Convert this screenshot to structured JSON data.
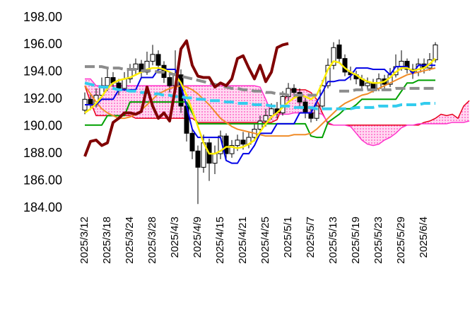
{
  "chart_data": {
    "type": "candlestick",
    "categories": [
      "2025/3/12",
      null,
      null,
      null,
      "2025/3/18",
      null,
      null,
      null,
      "2025/3/24",
      null,
      null,
      null,
      "2025/3/28",
      null,
      null,
      null,
      "2025/4/3",
      null,
      null,
      null,
      "2025/4/9",
      null,
      null,
      null,
      "2025/4/15",
      null,
      null,
      null,
      "2025/4/21",
      null,
      null,
      null,
      "2025/4/25",
      null,
      null,
      null,
      "2025/5/1",
      null,
      null,
      null,
      "2025/5/7",
      null,
      null,
      null,
      "2025/5/13",
      null,
      null,
      null,
      "2025/5/19",
      null,
      null,
      null,
      "2025/5/23",
      null,
      null,
      null,
      "2025/5/29",
      null,
      null,
      null,
      "2025/6/4",
      null,
      null,
      null,
      null,
      null,
      null,
      null,
      null
    ],
    "open": [
      191.2,
      192.0,
      191.6,
      192.3,
      193.0,
      193.6,
      193.2,
      192.8,
      193.5,
      194.2,
      194.6,
      194.0,
      194.8,
      195.3,
      194.5,
      193.6,
      193.0,
      193.8,
      191.5,
      189.5,
      188.2,
      187.0,
      188.8,
      187.3,
      188.0,
      189.3,
      188.0,
      188.6,
      189.0,
      188.7,
      189.2,
      189.8,
      190.4,
      190.8,
      191.3,
      191.0,
      192.2,
      192.8,
      192.5,
      191.8,
      191.0,
      190.6,
      191.5,
      193.0,
      194.5,
      196.0,
      195.0,
      194.0,
      193.8,
      193.5,
      193.0,
      193.2,
      192.8,
      193.5,
      193.1,
      193.8,
      194.4,
      194.8,
      194.2,
      194.0,
      194.6,
      194.3,
      194.9,
      null,
      null,
      null,
      null,
      null,
      null
    ],
    "high": [
      192.5,
      192.4,
      192.8,
      193.6,
      194.2,
      194.0,
      193.5,
      194.0,
      194.6,
      195.0,
      194.9,
      195.5,
      196.0,
      195.6,
      194.8,
      193.9,
      195.6,
      194.2,
      191.8,
      189.9,
      188.6,
      189.4,
      189.1,
      188.6,
      189.7,
      189.5,
      189.0,
      189.4,
      189.6,
      189.6,
      190.2,
      190.8,
      191.3,
      191.7,
      191.8,
      192.6,
      193.2,
      193.1,
      192.8,
      192.1,
      191.3,
      191.9,
      193.4,
      195.0,
      196.2,
      196.4,
      195.3,
      194.4,
      194.1,
      193.8,
      193.6,
      193.5,
      193.9,
      193.8,
      194.3,
      195.3,
      195.6,
      195.0,
      194.6,
      195.0,
      195.0,
      195.4,
      196.2,
      null,
      null,
      null,
      null,
      null,
      null
    ],
    "low": [
      190.9,
      191.2,
      191.4,
      192.1,
      192.6,
      192.8,
      192.3,
      192.6,
      193.2,
      193.8,
      193.6,
      193.8,
      194.5,
      194.0,
      193.2,
      192.5,
      192.8,
      191.0,
      188.9,
      187.6,
      184.3,
      186.6,
      186.0,
      186.5,
      187.6,
      187.6,
      187.7,
      188.2,
      188.3,
      188.4,
      188.9,
      189.5,
      190.0,
      190.5,
      190.6,
      190.8,
      191.9,
      192.1,
      191.4,
      190.6,
      190.3,
      190.4,
      191.3,
      192.8,
      194.2,
      194.7,
      193.7,
      193.4,
      193.1,
      192.7,
      192.7,
      192.5,
      192.6,
      192.8,
      192.9,
      193.6,
      194.1,
      193.9,
      193.5,
      193.7,
      193.9,
      194.1,
      194.7,
      null,
      null,
      null,
      null,
      null,
      null
    ],
    "close": [
      192.0,
      191.6,
      192.3,
      193.0,
      193.6,
      193.2,
      192.8,
      193.5,
      194.2,
      194.6,
      194.0,
      194.8,
      195.3,
      194.5,
      193.6,
      193.0,
      193.8,
      191.5,
      189.5,
      188.2,
      187.0,
      188.8,
      187.3,
      188.0,
      189.3,
      188.0,
      188.6,
      189.0,
      188.7,
      189.2,
      189.8,
      190.4,
      190.8,
      191.3,
      191.0,
      192.2,
      192.8,
      192.5,
      191.8,
      191.0,
      190.6,
      191.5,
      193.0,
      194.5,
      195.8,
      195.0,
      194.0,
      193.8,
      193.5,
      193.0,
      193.2,
      192.8,
      193.5,
      193.1,
      193.8,
      194.4,
      194.8,
      194.2,
      194.0,
      194.6,
      194.3,
      194.9,
      196.0,
      null,
      null,
      null,
      null,
      null,
      null
    ],
    "up_color": "#ffffff",
    "down_color": "#000000",
    "cloud": {
      "color": "#ff69c8",
      "span_a_color": "#e8001c",
      "span_b_color": "#ff33cc",
      "span_a": [
        193.0,
        191.8,
        190.8,
        190.8,
        190.8,
        190.8,
        190.8,
        190.8,
        190.8,
        190.6,
        190.6,
        190.6,
        190.6,
        190.6,
        190.6,
        190.6,
        190.6,
        190.6,
        190.6,
        190.6,
        190.3,
        190.3,
        190.3,
        190.3,
        190.3,
        190.3,
        190.3,
        190.3,
        190.3,
        190.3,
        190.3,
        190.3,
        190.3,
        190.3,
        190.5,
        191.5,
        192.7,
        192.7,
        192.7,
        192.7,
        192.5,
        192.0,
        191.0,
        190.2,
        190.1,
        190.1,
        190.1,
        190.1,
        190.1,
        190.1,
        190.1,
        190.1,
        190.1,
        190.1,
        190.1,
        190.1,
        190.1,
        190.1,
        190.1,
        190.1,
        190.3,
        190.4,
        190.6,
        190.9,
        190.8,
        190.9,
        190.6,
        191.5,
        191.9
      ],
      "span_b": [
        193.5,
        193.5,
        193.0,
        193.0,
        193.0,
        193.0,
        193.0,
        193.0,
        193.0,
        193.0,
        193.0,
        193.0,
        193.0,
        193.0,
        193.0,
        193.0,
        193.0,
        193.0,
        193.0,
        193.0,
        193.0,
        193.0,
        193.0,
        193.0,
        193.0,
        193.0,
        193.0,
        193.0,
        193.0,
        193.0,
        193.0,
        192.9,
        192.0,
        191.0,
        190.9,
        190.9,
        190.9,
        191.0,
        191.0,
        191.0,
        191.0,
        191.0,
        190.9,
        190.3,
        190.1,
        190.1,
        190.1,
        190.0,
        189.5,
        189.0,
        188.7,
        188.6,
        188.7,
        189.0,
        189.2,
        189.5,
        189.9,
        190.1,
        190.1,
        190.2,
        190.2,
        190.2,
        190.2,
        190.2,
        190.2,
        190.3,
        190.3,
        190.3,
        190.4
      ]
    },
    "lines": [
      {
        "color": "#00a000",
        "width": 2,
        "dashed": false,
        "values": [
          190.1,
          190.1,
          190.1,
          190.1,
          190.8,
          190.8,
          190.8,
          190.8,
          191.8,
          191.8,
          191.8,
          191.8,
          191.8,
          191.8,
          191.8,
          191.8,
          191.8,
          191.8,
          191.8,
          191.0,
          190.2,
          190.2,
          190.2,
          190.2,
          190.2,
          190.2,
          190.2,
          190.2,
          190.2,
          190.2,
          190.2,
          190.2,
          190.2,
          190.2,
          190.2,
          190.2,
          190.2,
          190.2,
          190.2,
          190.2,
          189.3,
          189.2,
          189.2,
          190.3,
          190.6,
          190.9,
          191.3,
          191.3,
          191.6,
          192.0,
          192.0,
          192.0,
          192.0,
          192.0,
          192.0,
          192.0,
          192.6,
          193.2,
          193.2,
          193.4,
          193.4,
          193.4,
          193.4,
          null,
          null,
          null,
          null,
          null,
          null
        ]
      },
      {
        "color": "#f08c28",
        "width": 2,
        "dashed": false,
        "values": [
          193.0,
          192.4,
          191.8,
          191.3,
          191.0,
          190.8,
          190.6,
          190.6,
          190.7,
          190.9,
          191.2,
          191.6,
          192.0,
          192.4,
          192.6,
          192.8,
          192.9,
          193.0,
          192.9,
          192.7,
          192.4,
          192.0,
          191.6,
          191.1,
          190.6,
          190.3,
          190.0,
          189.8,
          189.7,
          189.6,
          189.5,
          189.4,
          189.3,
          189.3,
          189.3,
          189.3,
          189.3,
          189.4,
          189.4,
          189.4,
          189.5,
          189.8,
          190.2,
          190.6,
          191.0,
          191.4,
          191.7,
          191.9,
          192.1,
          192.3,
          192.4,
          192.6,
          192.8,
          193.0,
          193.2,
          193.4,
          193.6,
          193.8,
          193.9,
          194.0,
          194.1,
          194.2,
          194.3,
          null,
          null,
          null,
          null,
          null,
          null
        ]
      },
      {
        "color": "#0000e6",
        "width": 2,
        "dashed": false,
        "values": [
          191.6,
          191.6,
          191.6,
          192.0,
          192.0,
          192.0,
          192.7,
          192.7,
          192.7,
          192.7,
          193.6,
          193.6,
          193.6,
          194.2,
          194.2,
          194.2,
          194.2,
          193.0,
          191.5,
          189.8,
          189.2,
          189.2,
          189.2,
          189.2,
          189.2,
          187.5,
          187.3,
          187.3,
          188.0,
          188.0,
          188.6,
          189.5,
          189.5,
          189.5,
          190.2,
          190.2,
          190.2,
          190.2,
          191.0,
          191.0,
          191.0,
          191.8,
          192.5,
          193.3,
          193.3,
          193.4,
          193.4,
          193.7,
          194.3,
          194.3,
          194.3,
          194.2,
          194.2,
          194.2,
          193.8,
          194.4,
          194.4,
          194.4,
          193.9,
          194.5,
          194.5,
          194.5,
          194.5,
          null,
          null,
          null,
          null,
          null,
          null
        ]
      },
      {
        "color": "#ffee00",
        "width": 2.5,
        "dashed": false,
        "values": [
          191.0,
          191.3,
          191.7,
          192.2,
          192.8,
          193.2,
          193.4,
          193.5,
          193.6,
          193.8,
          194.0,
          194.2,
          194.3,
          194.3,
          194.2,
          194.0,
          193.8,
          193.2,
          192.3,
          191.2,
          190.0,
          188.8,
          188.0,
          188.0,
          188.2,
          188.5,
          188.5,
          188.4,
          188.5,
          188.7,
          189.0,
          189.6,
          190.2,
          190.7,
          191.0,
          191.4,
          191.8,
          192.1,
          192.3,
          192.2,
          192.0,
          192.3,
          193.2,
          194.2,
          194.8,
          194.7,
          194.3,
          194.0,
          193.8,
          193.5,
          193.3,
          193.2,
          193.2,
          193.3,
          193.6,
          194.0,
          194.3,
          194.3,
          194.1,
          194.2,
          194.3,
          194.6,
          195.0,
          null,
          null,
          null,
          null,
          null,
          null
        ]
      },
      {
        "color": "#8c8c8c",
        "width": 4,
        "dashed": true,
        "values": [
          194.4,
          194.4,
          194.4,
          194.4,
          194.3,
          194.3,
          194.3,
          194.2,
          194.2,
          194.2,
          194.1,
          194.1,
          194.1,
          194.0,
          194.0,
          193.9,
          193.8,
          193.7,
          193.6,
          193.5,
          193.4,
          193.3,
          193.2,
          193.1,
          193.0,
          192.9,
          192.8,
          192.8,
          192.7,
          192.7,
          192.6,
          192.6,
          192.5,
          192.5,
          192.4,
          192.4,
          192.3,
          192.3,
          192.3,
          192.3,
          192.3,
          192.3,
          null,
          null,
          null,
          192.6,
          192.6,
          192.6,
          192.7,
          192.7,
          192.7,
          192.7,
          192.7,
          192.7,
          192.7,
          192.8,
          192.8,
          192.8,
          192.8,
          192.8,
          192.8,
          192.8,
          192.8,
          null,
          null,
          null,
          null,
          null,
          null
        ]
      },
      {
        "color": "#33ccee",
        "width": 4,
        "dashed": true,
        "values": [
          193.2,
          193.1,
          193.0,
          192.9,
          192.9,
          192.8,
          192.7,
          192.7,
          192.6,
          192.6,
          192.5,
          192.5,
          192.4,
          192.4,
          192.3,
          192.3,
          192.2,
          192.2,
          192.1,
          192.1,
          192.0,
          192.0,
          191.9,
          191.9,
          191.9,
          191.8,
          191.8,
          191.7,
          191.7,
          191.7,
          191.6,
          191.6,
          191.6,
          191.5,
          191.5,
          191.5,
          191.5,
          191.4,
          191.4,
          191.4,
          191.4,
          191.3,
          191.3,
          191.3,
          191.3,
          191.3,
          191.3,
          191.3,
          191.4,
          191.4,
          191.4,
          191.4,
          191.5,
          191.5,
          191.5,
          191.5,
          191.6,
          191.6,
          191.6,
          191.6,
          191.7,
          191.7,
          191.7,
          null,
          null,
          null,
          null,
          null,
          null
        ]
      },
      {
        "color": "#800000",
        "width": 4,
        "dashed": false,
        "values": [
          187.8,
          188.9,
          189.0,
          188.6,
          188.8,
          190.3,
          190.6,
          191.0,
          191.0,
          190.9,
          191.1,
          192.9,
          191.5,
          190.6,
          191.0,
          190.4,
          192.8,
          195.7,
          196.3,
          194.5,
          193.7,
          193.6,
          193.6,
          192.9,
          193.2,
          193.0,
          193.5,
          195.0,
          195.2,
          194.3,
          193.5,
          194.5,
          193.3,
          194.0,
          195.8,
          196.0,
          196.1,
          null,
          null,
          null,
          null,
          null,
          null,
          null,
          null,
          null,
          null,
          null,
          null,
          null,
          null,
          null,
          null,
          null,
          null,
          null,
          null,
          null,
          null,
          null,
          null,
          null,
          null,
          null,
          null,
          null,
          null,
          null,
          null
        ]
      }
    ],
    "ylim": [
      184,
      198
    ],
    "yticks": [
      {
        "value": 184,
        "label": "184.00"
      },
      {
        "value": 186,
        "label": "186.00"
      },
      {
        "value": 188,
        "label": "188.00"
      },
      {
        "value": 190,
        "label": "190.00"
      },
      {
        "value": 192,
        "label": "192.00"
      },
      {
        "value": 194,
        "label": "194.00"
      },
      {
        "value": 196,
        "label": "196.00"
      },
      {
        "value": 198,
        "label": "198.00"
      }
    ],
    "grid": false
  }
}
